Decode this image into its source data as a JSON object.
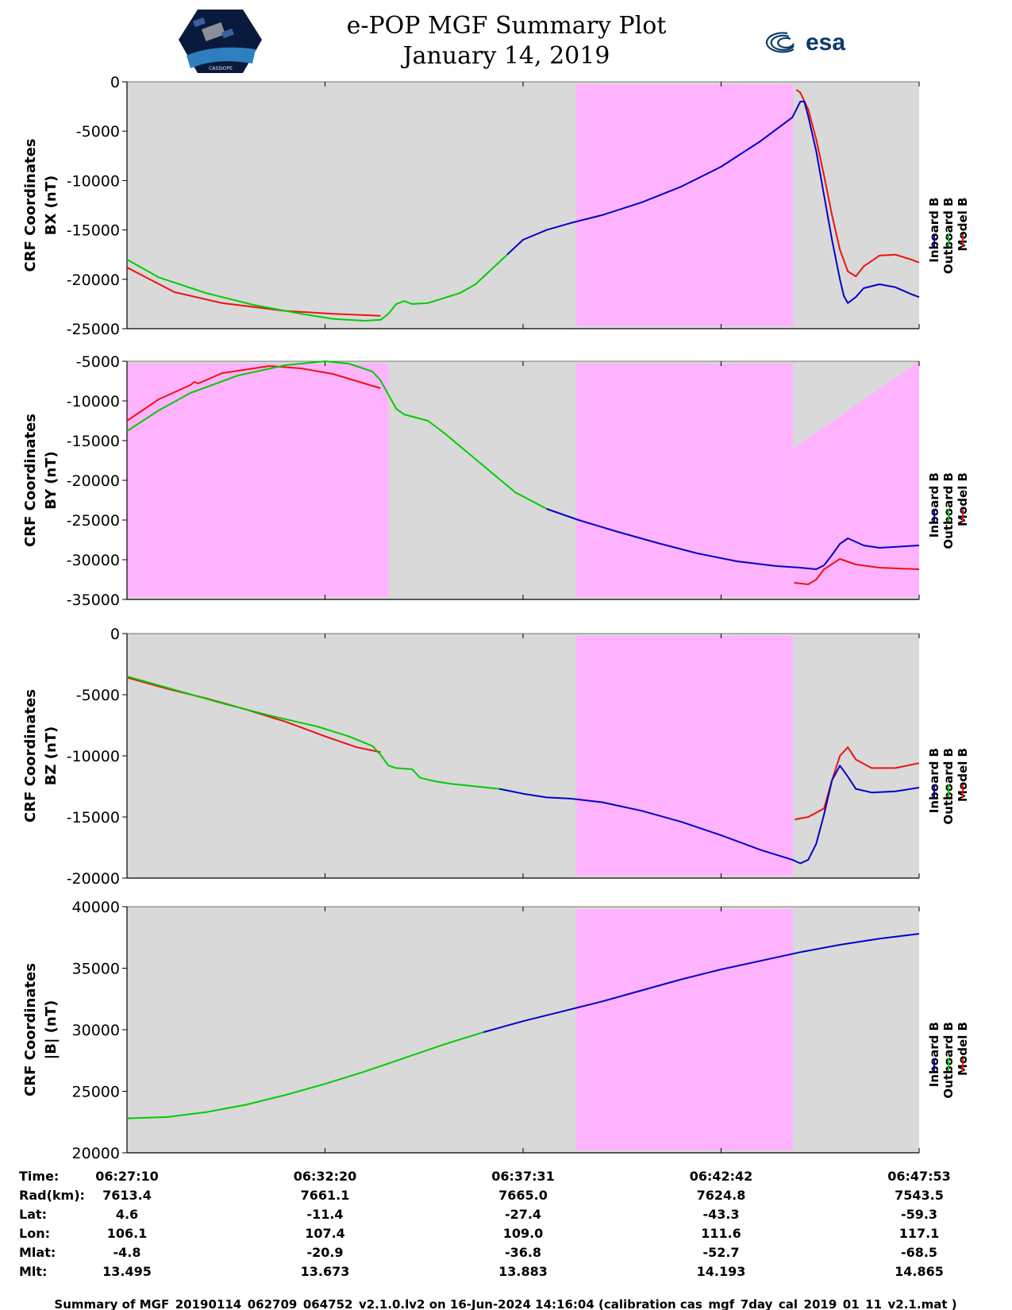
{
  "header": {
    "title": "e-POP MGF Summary Plot",
    "date": "January 14, 2019",
    "logo_left_text": "CASSIOPE",
    "logo_right_text": "esa"
  },
  "colors": {
    "background": "#d9d9d9",
    "highlight": "#ffb3ff",
    "inboard": "#0000cc",
    "outboard": "#00cc00",
    "model": "#ee1111"
  },
  "legend": [
    "Inboard B",
    "Outboard B",
    "Model B"
  ],
  "chart_data": [
    {
      "type": "line",
      "panel": "bx",
      "ylabel_line1": "CRF Coordinates",
      "ylabel_line2": "BX (nT)",
      "ylim": [
        -25000,
        0
      ],
      "yticks": [
        0,
        -5000,
        -10000,
        -15000,
        -20000,
        -25000
      ],
      "ytick_labels": [
        "0",
        "-5000",
        "-10000",
        "-15000",
        "-20000",
        "-25000"
      ],
      "highlight_spans": [
        [
          0.567,
          0.841
        ]
      ],
      "series": [
        {
          "name": "Model B",
          "segments": [
            [
              [
                0.0,
                -18800
              ],
              [
                0.06,
                -21300
              ],
              [
                0.12,
                -22400
              ],
              [
                0.2,
                -23200
              ],
              [
                0.26,
                -23500
              ],
              [
                0.32,
                -23700
              ]
            ],
            [
              [
                0.845,
                -800
              ],
              [
                0.85,
                -1100
              ],
              [
                0.86,
                -2800
              ],
              [
                0.87,
                -5800
              ],
              [
                0.88,
                -9500
              ],
              [
                0.89,
                -13500
              ],
              [
                0.9,
                -17000
              ],
              [
                0.91,
                -19200
              ],
              [
                0.92,
                -19700
              ],
              [
                0.93,
                -18700
              ],
              [
                0.95,
                -17600
              ],
              [
                0.97,
                -17500
              ],
              [
                0.99,
                -18000
              ],
              [
                1.0,
                -18300
              ]
            ]
          ]
        },
        {
          "name": "Outboard B",
          "segments": [
            [
              [
                0.0,
                -18000
              ],
              [
                0.04,
                -19800
              ],
              [
                0.1,
                -21400
              ],
              [
                0.16,
                -22600
              ],
              [
                0.22,
                -23500
              ],
              [
                0.26,
                -24000
              ],
              [
                0.3,
                -24200
              ],
              [
                0.32,
                -24100
              ],
              [
                0.33,
                -23500
              ],
              [
                0.34,
                -22500
              ],
              [
                0.35,
                -22200
              ],
              [
                0.36,
                -22500
              ],
              [
                0.38,
                -22400
              ],
              [
                0.4,
                -21900
              ],
              [
                0.42,
                -21400
              ],
              [
                0.44,
                -20500
              ],
              [
                0.46,
                -19000
              ],
              [
                0.48,
                -17500
              ]
            ]
          ]
        },
        {
          "name": "Inboard B",
          "segments": [
            [
              [
                0.48,
                -17500
              ],
              [
                0.5,
                -16000
              ],
              [
                0.53,
                -15000
              ],
              [
                0.56,
                -14300
              ],
              [
                0.6,
                -13500
              ],
              [
                0.65,
                -12200
              ],
              [
                0.7,
                -10600
              ],
              [
                0.75,
                -8600
              ],
              [
                0.8,
                -6000
              ],
              [
                0.84,
                -3600
              ],
              [
                0.85,
                -2000
              ],
              [
                0.855,
                -2000
              ],
              [
                0.86,
                -3500
              ],
              [
                0.87,
                -7000
              ],
              [
                0.88,
                -11500
              ],
              [
                0.89,
                -16000
              ],
              [
                0.9,
                -20000
              ],
              [
                0.905,
                -21700
              ],
              [
                0.91,
                -22400
              ],
              [
                0.92,
                -21800
              ],
              [
                0.93,
                -20900
              ],
              [
                0.95,
                -20500
              ],
              [
                0.97,
                -20800
              ],
              [
                0.99,
                -21500
              ],
              [
                1.0,
                -21800
              ]
            ]
          ]
        }
      ]
    },
    {
      "type": "line",
      "panel": "by",
      "ylabel_line1": "CRF Coordinates",
      "ylabel_line2": "BY (nT)",
      "ylim": [
        -35000,
        -5000
      ],
      "yticks": [
        -5000,
        -10000,
        -15000,
        -20000,
        -25000,
        -30000,
        -35000
      ],
      "ytick_labels": [
        "-5000",
        "-10000",
        "-15000",
        "-20000",
        "-25000",
        "-30000",
        "-35000"
      ],
      "highlight_spans": [
        [
          0.0,
          0.33
        ],
        [
          0.567,
          0.841
        ]
      ],
      "highlight_wedge": {
        "x_start": 0.841,
        "top_start": -16000,
        "top_end": -5000
      },
      "series": [
        {
          "name": "Model B",
          "segments": [
            [
              [
                0.0,
                -12500
              ],
              [
                0.04,
                -9800
              ],
              [
                0.08,
                -8000
              ],
              [
                0.085,
                -7600
              ],
              [
                0.09,
                -7800
              ],
              [
                0.12,
                -6500
              ],
              [
                0.18,
                -5600
              ],
              [
                0.22,
                -5900
              ],
              [
                0.26,
                -6600
              ],
              [
                0.3,
                -7800
              ],
              [
                0.32,
                -8400
              ]
            ],
            [
              [
                0.842,
                -32900
              ],
              [
                0.86,
                -33100
              ],
              [
                0.87,
                -32500
              ],
              [
                0.88,
                -31200
              ],
              [
                0.9,
                -29900
              ],
              [
                0.92,
                -30600
              ],
              [
                0.95,
                -31000
              ],
              [
                1.0,
                -31200
              ]
            ]
          ]
        },
        {
          "name": "Outboard B",
          "segments": [
            [
              [
                0.0,
                -13800
              ],
              [
                0.04,
                -11200
              ],
              [
                0.08,
                -9000
              ],
              [
                0.14,
                -6800
              ],
              [
                0.2,
                -5500
              ],
              [
                0.25,
                -5000
              ],
              [
                0.28,
                -5300
              ],
              [
                0.31,
                -6300
              ],
              [
                0.32,
                -7400
              ],
              [
                0.33,
                -9200
              ],
              [
                0.34,
                -11000
              ],
              [
                0.35,
                -11700
              ],
              [
                0.38,
                -12500
              ],
              [
                0.4,
                -14000
              ],
              [
                0.43,
                -16500
              ],
              [
                0.46,
                -19000
              ],
              [
                0.49,
                -21500
              ],
              [
                0.53,
                -23600
              ]
            ]
          ]
        },
        {
          "name": "Inboard B",
          "segments": [
            [
              [
                0.53,
                -23600
              ],
              [
                0.57,
                -25000
              ],
              [
                0.62,
                -26500
              ],
              [
                0.67,
                -27900
              ],
              [
                0.72,
                -29200
              ],
              [
                0.77,
                -30200
              ],
              [
                0.82,
                -30800
              ],
              [
                0.85,
                -31000
              ],
              [
                0.87,
                -31200
              ],
              [
                0.88,
                -30700
              ],
              [
                0.89,
                -29400
              ],
              [
                0.9,
                -28000
              ],
              [
                0.91,
                -27300
              ],
              [
                0.93,
                -28200
              ],
              [
                0.95,
                -28500
              ],
              [
                1.0,
                -28200
              ]
            ]
          ]
        }
      ]
    },
    {
      "type": "line",
      "panel": "bz",
      "ylabel_line1": "CRF Coordinates",
      "ylabel_line2": "BZ (nT)",
      "ylim": [
        -20000,
        0
      ],
      "yticks": [
        0,
        -5000,
        -10000,
        -15000,
        -20000
      ],
      "ytick_labels": [
        "0",
        "-5000",
        "-10000",
        "-15000",
        "-20000"
      ],
      "highlight_spans": [
        [
          0.567,
          0.841
        ]
      ],
      "series": [
        {
          "name": "Model B",
          "segments": [
            [
              [
                0.0,
                -3600
              ],
              [
                0.05,
                -4500
              ],
              [
                0.1,
                -5300
              ],
              [
                0.15,
                -6200
              ],
              [
                0.2,
                -7200
              ],
              [
                0.25,
                -8400
              ],
              [
                0.29,
                -9300
              ],
              [
                0.32,
                -9700
              ]
            ],
            [
              [
                0.843,
                -15200
              ],
              [
                0.86,
                -15000
              ],
              [
                0.88,
                -14300
              ],
              [
                0.89,
                -12000
              ],
              [
                0.9,
                -10000
              ],
              [
                0.91,
                -9300
              ],
              [
                0.92,
                -10300
              ],
              [
                0.94,
                -11000
              ],
              [
                0.97,
                -11000
              ],
              [
                1.0,
                -10600
              ]
            ]
          ]
        },
        {
          "name": "Outboard B",
          "segments": [
            [
              [
                0.0,
                -3500
              ],
              [
                0.06,
                -4600
              ],
              [
                0.12,
                -5700
              ],
              [
                0.18,
                -6700
              ],
              [
                0.24,
                -7600
              ],
              [
                0.28,
                -8400
              ],
              [
                0.31,
                -9200
              ],
              [
                0.32,
                -9900
              ],
              [
                0.33,
                -10800
              ],
              [
                0.34,
                -11000
              ],
              [
                0.36,
                -11100
              ],
              [
                0.37,
                -11800
              ],
              [
                0.39,
                -12100
              ],
              [
                0.41,
                -12300
              ],
              [
                0.44,
                -12500
              ],
              [
                0.47,
                -12700
              ]
            ]
          ]
        },
        {
          "name": "Inboard B",
          "segments": [
            [
              [
                0.47,
                -12700
              ],
              [
                0.5,
                -13100
              ],
              [
                0.53,
                -13400
              ],
              [
                0.56,
                -13500
              ],
              [
                0.6,
                -13800
              ],
              [
                0.65,
                -14500
              ],
              [
                0.7,
                -15400
              ],
              [
                0.75,
                -16500
              ],
              [
                0.8,
                -17700
              ],
              [
                0.84,
                -18500
              ],
              [
                0.85,
                -18800
              ],
              [
                0.86,
                -18500
              ],
              [
                0.87,
                -17200
              ],
              [
                0.88,
                -14800
              ],
              [
                0.89,
                -12000
              ],
              [
                0.9,
                -10800
              ],
              [
                0.91,
                -11700
              ],
              [
                0.92,
                -12700
              ],
              [
                0.94,
                -13000
              ],
              [
                0.97,
                -12900
              ],
              [
                1.0,
                -12600
              ]
            ]
          ]
        }
      ]
    },
    {
      "type": "line",
      "panel": "bmag",
      "ylabel_line1": "CRF Coordinates",
      "ylabel_line2": "|B| (nT)",
      "ylim": [
        20000,
        40000
      ],
      "yticks": [
        40000,
        35000,
        30000,
        25000,
        20000
      ],
      "ytick_labels": [
        "40000",
        "35000",
        "30000",
        "25000",
        "20000"
      ],
      "highlight_spans": [
        [
          0.567,
          0.841
        ]
      ],
      "series": [
        {
          "name": "Outboard B",
          "segments": [
            [
              [
                0.0,
                22800
              ],
              [
                0.05,
                22900
              ],
              [
                0.1,
                23300
              ],
              [
                0.15,
                23900
              ],
              [
                0.2,
                24700
              ],
              [
                0.25,
                25600
              ],
              [
                0.3,
                26600
              ],
              [
                0.35,
                27700
              ],
              [
                0.4,
                28800
              ],
              [
                0.45,
                29800
              ]
            ]
          ]
        },
        {
          "name": "Inboard B",
          "segments": [
            [
              [
                0.45,
                29800
              ],
              [
                0.5,
                30700
              ],
              [
                0.55,
                31500
              ],
              [
                0.6,
                32300
              ],
              [
                0.65,
                33200
              ],
              [
                0.7,
                34100
              ],
              [
                0.75,
                34900
              ],
              [
                0.8,
                35600
              ],
              [
                0.85,
                36300
              ],
              [
                0.9,
                36900
              ],
              [
                0.95,
                37400
              ],
              [
                1.0,
                37800
              ]
            ]
          ]
        }
      ]
    }
  ],
  "footer_table": {
    "row_labels": [
      "Time:",
      "Rad(km):",
      "Lat:",
      "Lon:",
      "Mlat:",
      "Mlt:"
    ],
    "columns": [
      [
        "06:27:10",
        "7613.4",
        "4.6",
        "106.1",
        "-4.8",
        "13.495"
      ],
      [
        "06:32:20",
        "7661.1",
        "-11.4",
        "107.4",
        "-20.9",
        "13.673"
      ],
      [
        "06:37:31",
        "7665.0",
        "-27.4",
        "109.0",
        "-36.8",
        "13.883"
      ],
      [
        "06:42:42",
        "7624.8",
        "-43.3",
        "111.6",
        "-52.7",
        "14.193"
      ],
      [
        "06:47:53",
        "7543.5",
        "-59.3",
        "117.1",
        "-68.5",
        "14.865"
      ]
    ]
  },
  "footer_note": "Summary of MGF_20190114_062709_064752_v2.1.0.lv2 on 16-Jun-2024 14:16:04 (calibration cas_mgf_7day_cal_2019_01_11_v2.1.mat )"
}
